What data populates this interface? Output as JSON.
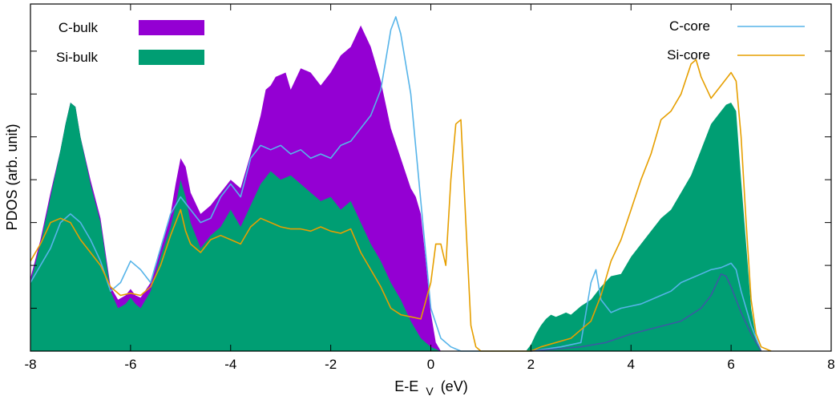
{
  "chart_data": {
    "type": "area",
    "xlabel_main": "E-E",
    "xlabel_sub": "V",
    "xlabel_unit": "(eV)",
    "ylabel": "PDOS (arb.  unit)",
    "xlim": [
      -8,
      8
    ],
    "ylim": [
      0,
      8.1
    ],
    "xticks": [
      -8,
      -6,
      -4,
      -2,
      0,
      2,
      4,
      6,
      8
    ],
    "xtick_labels": [
      "-8",
      "-6",
      "-4",
      "-2",
      "0",
      "2",
      "4",
      "6",
      "8"
    ],
    "yticks": [
      1,
      2,
      3,
      4,
      5,
      6,
      7
    ],
    "grid": false,
    "legend_placement": "top-left and top-right",
    "series": [
      {
        "name": "C-bulk",
        "kind": "filled",
        "color": "#9400d3",
        "points": [
          [
            -8.0,
            1.7
          ],
          [
            -7.8,
            2.6
          ],
          [
            -7.6,
            3.7
          ],
          [
            -7.4,
            4.7
          ],
          [
            -7.3,
            5.3
          ],
          [
            -7.2,
            5.8
          ],
          [
            -7.1,
            5.7
          ],
          [
            -7.0,
            5.0
          ],
          [
            -6.8,
            4.0
          ],
          [
            -6.6,
            3.1
          ],
          [
            -6.4,
            1.5
          ],
          [
            -6.25,
            1.2
          ],
          [
            -6.1,
            1.3
          ],
          [
            -6.0,
            1.45
          ],
          [
            -5.9,
            1.3
          ],
          [
            -5.8,
            1.25
          ],
          [
            -5.6,
            1.6
          ],
          [
            -5.4,
            2.4
          ],
          [
            -5.2,
            3.2
          ],
          [
            -5.1,
            3.9
          ],
          [
            -5.0,
            4.5
          ],
          [
            -4.9,
            4.3
          ],
          [
            -4.8,
            3.7
          ],
          [
            -4.6,
            3.2
          ],
          [
            -4.4,
            3.4
          ],
          [
            -4.2,
            3.7
          ],
          [
            -4.0,
            4.0
          ],
          [
            -3.8,
            3.8
          ],
          [
            -3.6,
            4.6
          ],
          [
            -3.4,
            5.5
          ],
          [
            -3.3,
            6.1
          ],
          [
            -3.2,
            6.2
          ],
          [
            -3.1,
            6.4
          ],
          [
            -2.9,
            6.5
          ],
          [
            -2.8,
            6.1
          ],
          [
            -2.6,
            6.6
          ],
          [
            -2.4,
            6.5
          ],
          [
            -2.2,
            6.2
          ],
          [
            -2.0,
            6.5
          ],
          [
            -1.8,
            6.9
          ],
          [
            -1.6,
            7.1
          ],
          [
            -1.4,
            7.6
          ],
          [
            -1.2,
            7.1
          ],
          [
            -1.0,
            6.3
          ],
          [
            -0.8,
            5.2
          ],
          [
            -0.6,
            4.5
          ],
          [
            -0.4,
            3.8
          ],
          [
            -0.3,
            3.6
          ],
          [
            -0.2,
            3.2
          ],
          [
            -0.1,
            2.1
          ],
          [
            0.0,
            0.9
          ],
          [
            0.1,
            0.2
          ],
          [
            0.2,
            0.0
          ]
        ]
      },
      {
        "name": "Si-bulk",
        "kind": "filled",
        "color": "#009e73",
        "points": [
          [
            -8.0,
            1.6
          ],
          [
            -7.8,
            2.5
          ],
          [
            -7.6,
            3.6
          ],
          [
            -7.4,
            4.7
          ],
          [
            -7.3,
            5.3
          ],
          [
            -7.2,
            5.8
          ],
          [
            -7.1,
            5.7
          ],
          [
            -7.0,
            5.0
          ],
          [
            -6.8,
            3.9
          ],
          [
            -6.6,
            3.0
          ],
          [
            -6.4,
            1.4
          ],
          [
            -6.25,
            1.0
          ],
          [
            -6.1,
            1.1
          ],
          [
            -6.0,
            1.25
          ],
          [
            -5.9,
            1.1
          ],
          [
            -5.8,
            1.0
          ],
          [
            -5.6,
            1.4
          ],
          [
            -5.4,
            2.2
          ],
          [
            -5.2,
            2.9
          ],
          [
            -5.1,
            3.4
          ],
          [
            -5.0,
            4.0
          ],
          [
            -4.9,
            3.6
          ],
          [
            -4.8,
            3.0
          ],
          [
            -4.6,
            2.4
          ],
          [
            -4.4,
            2.7
          ],
          [
            -4.2,
            2.9
          ],
          [
            -4.0,
            3.3
          ],
          [
            -3.8,
            2.9
          ],
          [
            -3.6,
            3.4
          ],
          [
            -3.4,
            3.9
          ],
          [
            -3.2,
            4.2
          ],
          [
            -3.0,
            4.0
          ],
          [
            -2.8,
            4.1
          ],
          [
            -2.6,
            3.9
          ],
          [
            -2.4,
            3.7
          ],
          [
            -2.2,
            3.5
          ],
          [
            -2.0,
            3.6
          ],
          [
            -1.8,
            3.3
          ],
          [
            -1.6,
            3.5
          ],
          [
            -1.4,
            3.0
          ],
          [
            -1.2,
            2.5
          ],
          [
            -1.0,
            2.1
          ],
          [
            -0.8,
            1.6
          ],
          [
            -0.6,
            1.2
          ],
          [
            -0.4,
            0.7
          ],
          [
            -0.2,
            0.3
          ],
          [
            0.0,
            0.1
          ],
          [
            0.2,
            0.0
          ],
          [
            1.9,
            0.0
          ],
          [
            2.0,
            0.15
          ],
          [
            2.1,
            0.4
          ],
          [
            2.2,
            0.6
          ],
          [
            2.3,
            0.75
          ],
          [
            2.4,
            0.85
          ],
          [
            2.5,
            0.8
          ],
          [
            2.6,
            0.85
          ],
          [
            2.7,
            0.9
          ],
          [
            2.8,
            0.85
          ],
          [
            2.9,
            0.95
          ],
          [
            3.0,
            1.05
          ],
          [
            3.2,
            1.2
          ],
          [
            3.4,
            1.5
          ],
          [
            3.6,
            1.75
          ],
          [
            3.8,
            1.8
          ],
          [
            4.0,
            2.2
          ],
          [
            4.2,
            2.5
          ],
          [
            4.4,
            2.8
          ],
          [
            4.6,
            3.1
          ],
          [
            4.8,
            3.3
          ],
          [
            5.0,
            3.7
          ],
          [
            5.2,
            4.1
          ],
          [
            5.4,
            4.7
          ],
          [
            5.6,
            5.3
          ],
          [
            5.8,
            5.6
          ],
          [
            5.9,
            5.75
          ],
          [
            6.0,
            5.8
          ],
          [
            6.1,
            5.6
          ],
          [
            6.2,
            4.0
          ],
          [
            6.3,
            2.5
          ],
          [
            6.4,
            1.0
          ],
          [
            6.5,
            0.3
          ],
          [
            6.6,
            0.0
          ]
        ]
      },
      {
        "name": "C-core",
        "kind": "line",
        "color": "#56b4e9",
        "points": [
          [
            -8.0,
            1.6
          ],
          [
            -7.9,
            1.8
          ],
          [
            -7.8,
            2.0
          ],
          [
            -7.6,
            2.4
          ],
          [
            -7.4,
            3.0
          ],
          [
            -7.2,
            3.2
          ],
          [
            -7.0,
            3.0
          ],
          [
            -6.8,
            2.6
          ],
          [
            -6.6,
            2.1
          ],
          [
            -6.4,
            1.4
          ],
          [
            -6.2,
            1.6
          ],
          [
            -6.0,
            2.1
          ],
          [
            -5.8,
            1.9
          ],
          [
            -5.6,
            1.6
          ],
          [
            -5.4,
            2.4
          ],
          [
            -5.2,
            3.2
          ],
          [
            -5.0,
            3.6
          ],
          [
            -4.8,
            3.3
          ],
          [
            -4.6,
            3.0
          ],
          [
            -4.4,
            3.1
          ],
          [
            -4.2,
            3.6
          ],
          [
            -4.0,
            3.9
          ],
          [
            -3.8,
            3.6
          ],
          [
            -3.6,
            4.5
          ],
          [
            -3.4,
            4.8
          ],
          [
            -3.2,
            4.7
          ],
          [
            -3.0,
            4.8
          ],
          [
            -2.8,
            4.6
          ],
          [
            -2.6,
            4.7
          ],
          [
            -2.4,
            4.5
          ],
          [
            -2.2,
            4.6
          ],
          [
            -2.0,
            4.5
          ],
          [
            -1.8,
            4.8
          ],
          [
            -1.6,
            4.9
          ],
          [
            -1.4,
            5.2
          ],
          [
            -1.2,
            5.5
          ],
          [
            -1.0,
            6.1
          ],
          [
            -0.8,
            7.5
          ],
          [
            -0.7,
            7.8
          ],
          [
            -0.6,
            7.4
          ],
          [
            -0.4,
            6.0
          ],
          [
            -0.2,
            3.5
          ],
          [
            0.0,
            1.0
          ],
          [
            0.2,
            0.3
          ],
          [
            0.4,
            0.1
          ],
          [
            0.6,
            0.0
          ],
          [
            2.0,
            0.0
          ],
          [
            2.6,
            0.1
          ],
          [
            3.0,
            0.2
          ],
          [
            3.2,
            1.6
          ],
          [
            3.3,
            1.9
          ],
          [
            3.4,
            1.2
          ],
          [
            3.6,
            0.9
          ],
          [
            3.8,
            1.0
          ],
          [
            4.0,
            1.05
          ],
          [
            4.2,
            1.1
          ],
          [
            4.4,
            1.2
          ],
          [
            4.6,
            1.3
          ],
          [
            4.8,
            1.4
          ],
          [
            5.0,
            1.6
          ],
          [
            5.2,
            1.7
          ],
          [
            5.4,
            1.8
          ],
          [
            5.6,
            1.9
          ],
          [
            5.8,
            1.95
          ],
          [
            5.9,
            2.0
          ],
          [
            6.0,
            2.05
          ],
          [
            6.1,
            1.9
          ],
          [
            6.2,
            1.4
          ],
          [
            6.4,
            0.6
          ],
          [
            6.5,
            0.3
          ],
          [
            6.6,
            0.0
          ]
        ]
      },
      {
        "name": "Si-core",
        "kind": "line",
        "color": "#e69f00",
        "points": [
          [
            -8.0,
            2.1
          ],
          [
            -7.8,
            2.5
          ],
          [
            -7.6,
            3.0
          ],
          [
            -7.4,
            3.1
          ],
          [
            -7.2,
            3.0
          ],
          [
            -7.0,
            2.6
          ],
          [
            -6.8,
            2.3
          ],
          [
            -6.6,
            2.0
          ],
          [
            -6.4,
            1.5
          ],
          [
            -6.2,
            1.3
          ],
          [
            -6.0,
            1.35
          ],
          [
            -5.8,
            1.3
          ],
          [
            -5.6,
            1.5
          ],
          [
            -5.4,
            2.0
          ],
          [
            -5.2,
            2.7
          ],
          [
            -5.1,
            3.0
          ],
          [
            -5.0,
            3.3
          ],
          [
            -4.9,
            2.8
          ],
          [
            -4.8,
            2.5
          ],
          [
            -4.6,
            2.3
          ],
          [
            -4.4,
            2.6
          ],
          [
            -4.2,
            2.7
          ],
          [
            -4.0,
            2.6
          ],
          [
            -3.8,
            2.5
          ],
          [
            -3.6,
            2.9
          ],
          [
            -3.4,
            3.1
          ],
          [
            -3.2,
            3.0
          ],
          [
            -3.0,
            2.9
          ],
          [
            -2.8,
            2.85
          ],
          [
            -2.6,
            2.85
          ],
          [
            -2.4,
            2.8
          ],
          [
            -2.2,
            2.9
          ],
          [
            -2.0,
            2.8
          ],
          [
            -1.8,
            2.75
          ],
          [
            -1.6,
            2.85
          ],
          [
            -1.4,
            2.3
          ],
          [
            -1.2,
            1.9
          ],
          [
            -1.0,
            1.5
          ],
          [
            -0.8,
            1.0
          ],
          [
            -0.6,
            0.85
          ],
          [
            -0.4,
            0.8
          ],
          [
            -0.2,
            0.75
          ],
          [
            0.0,
            1.6
          ],
          [
            0.1,
            2.5
          ],
          [
            0.2,
            2.5
          ],
          [
            0.3,
            2.0
          ],
          [
            0.4,
            4.0
          ],
          [
            0.5,
            5.3
          ],
          [
            0.6,
            5.4
          ],
          [
            0.7,
            3.0
          ],
          [
            0.8,
            0.6
          ],
          [
            0.9,
            0.1
          ],
          [
            1.0,
            0.0
          ],
          [
            2.0,
            0.0
          ],
          [
            2.2,
            0.1
          ],
          [
            2.5,
            0.2
          ],
          [
            2.8,
            0.3
          ],
          [
            3.0,
            0.5
          ],
          [
            3.2,
            0.7
          ],
          [
            3.4,
            1.3
          ],
          [
            3.6,
            2.1
          ],
          [
            3.8,
            2.6
          ],
          [
            4.0,
            3.3
          ],
          [
            4.2,
            4.0
          ],
          [
            4.4,
            4.6
          ],
          [
            4.6,
            5.4
          ],
          [
            4.8,
            5.6
          ],
          [
            5.0,
            6.0
          ],
          [
            5.2,
            6.7
          ],
          [
            5.3,
            6.8
          ],
          [
            5.4,
            6.4
          ],
          [
            5.6,
            5.9
          ],
          [
            5.8,
            6.2
          ],
          [
            6.0,
            6.5
          ],
          [
            6.1,
            6.3
          ],
          [
            6.2,
            5.0
          ],
          [
            6.3,
            3.0
          ],
          [
            6.4,
            1.2
          ],
          [
            6.5,
            0.4
          ],
          [
            6.6,
            0.1
          ],
          [
            6.8,
            0.0
          ]
        ]
      },
      {
        "name": "",
        "kind": "line",
        "color": "#3b5aa3",
        "points": [
          [
            2.0,
            0.0
          ],
          [
            3.0,
            0.1
          ],
          [
            3.5,
            0.2
          ],
          [
            4.0,
            0.4
          ],
          [
            4.5,
            0.55
          ],
          [
            5.0,
            0.7
          ],
          [
            5.4,
            1.0
          ],
          [
            5.6,
            1.3
          ],
          [
            5.8,
            1.8
          ],
          [
            5.9,
            1.75
          ],
          [
            6.0,
            1.5
          ],
          [
            6.2,
            0.9
          ],
          [
            6.4,
            0.4
          ],
          [
            6.6,
            0.0
          ]
        ]
      }
    ]
  },
  "legend": {
    "c_bulk": "C-bulk",
    "si_bulk": "Si-bulk",
    "c_core": "C-core",
    "si_core": "Si-core"
  },
  "colors": {
    "c_bulk": "#9400d3",
    "si_bulk": "#009e73",
    "c_core": "#56b4e9",
    "si_core": "#e69f00",
    "extra_line": "#3b5aa3"
  }
}
